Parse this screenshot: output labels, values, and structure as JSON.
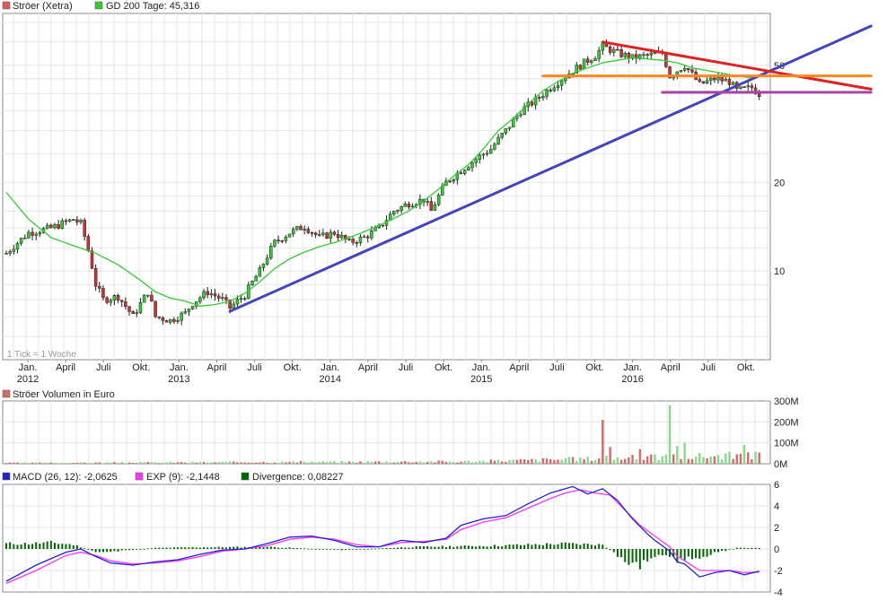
{
  "legend_main": {
    "price_label": "Ströer (Xetra)",
    "price_color": "#e05a5a",
    "ma_label": "GD 200 Tage: 45,316",
    "ma_color": "#33cc33"
  },
  "tick_note": "1 Tick = 1 Woche",
  "legend_volume": {
    "label": "Ströer Volumen in Euro",
    "color": "#d46a6a"
  },
  "legend_macd": {
    "macd_label": "MACD (26, 12): -2,0625",
    "macd_color": "#2222cc",
    "exp_label": "EXP (9): -2,1448",
    "exp_color": "#ff33ff",
    "div_label": "Divergence: 0,08227",
    "div_color": "#006600"
  },
  "x_axis": {
    "months": [
      "Jan.",
      "April",
      "Juli",
      "Okt.",
      "Jan.",
      "April",
      "Juli",
      "Okt.",
      "Jan.",
      "April",
      "Juli",
      "Okt.",
      "Jan.",
      "April",
      "Juli",
      "Okt.",
      "Jan.",
      "April",
      "Juli",
      "Okt."
    ],
    "years": [
      "2012",
      "2013",
      "2014",
      "2015",
      "2016"
    ]
  },
  "chart_data": [
    {
      "type": "line",
      "panel": "price",
      "scale": "log",
      "ylim": [
        5,
        75
      ],
      "yticks": [
        "10",
        "20",
        "50"
      ],
      "x_range": [
        "2011-12",
        "2016-11"
      ],
      "series": [
        {
          "name": "Ströer (Xetra)",
          "style": "candlestick",
          "approx_close": [
            [
              0,
              11.5
            ],
            [
              3,
              13.5
            ],
            [
              6,
              14
            ],
            [
              9,
              15
            ],
            [
              10,
              14.5
            ],
            [
              12,
              9
            ],
            [
              13,
              8
            ],
            [
              15,
              8.2
            ],
            [
              17,
              7
            ],
            [
              19,
              8.5
            ],
            [
              20,
              7
            ],
            [
              22,
              6.8
            ],
            [
              24,
              7.2
            ],
            [
              25,
              7.8
            ],
            [
              27,
              8.5
            ],
            [
              29,
              8
            ],
            [
              30,
              7.5
            ],
            [
              32,
              8.3
            ],
            [
              34,
              10
            ],
            [
              36,
              12.5
            ],
            [
              38,
              13.5
            ],
            [
              40,
              14.2
            ],
            [
              42,
              13
            ],
            [
              44,
              13.5
            ],
            [
              46,
              12.5
            ],
            [
              48,
              13
            ],
            [
              50,
              14
            ],
            [
              52,
              16
            ],
            [
              54,
              17
            ],
            [
              56,
              17.5
            ],
            [
              57,
              16
            ],
            [
              59,
              20
            ],
            [
              61,
              22
            ],
            [
              63,
              24
            ],
            [
              65,
              26
            ],
            [
              67,
              30
            ],
            [
              69,
              35
            ],
            [
              71,
              38
            ],
            [
              73,
              42
            ],
            [
              75,
              46
            ],
            [
              77,
              50
            ],
            [
              79,
              54
            ],
            [
              80,
              58
            ],
            [
              82,
              55
            ],
            [
              84,
              53
            ],
            [
              86,
              54
            ],
            [
              88,
              55
            ],
            [
              89,
              46
            ],
            [
              91,
              50
            ],
            [
              93,
              43
            ],
            [
              95,
              45
            ],
            [
              97,
              44
            ],
            [
              98,
              41
            ],
            [
              100,
              42
            ],
            [
              101,
              40
            ]
          ]
        },
        {
          "name": "GD 200 Tage: 45,316",
          "style": "line",
          "approx": [
            [
              0,
              18.5
            ],
            [
              3,
              15
            ],
            [
              6,
              13
            ],
            [
              9,
              12.2
            ],
            [
              12,
              11.5
            ],
            [
              15,
              10.5
            ],
            [
              18,
              9.3
            ],
            [
              20,
              8.5
            ],
            [
              22,
              8.1
            ],
            [
              24,
              7.9
            ],
            [
              26,
              7.6
            ],
            [
              28,
              7.7
            ],
            [
              30,
              7.9
            ],
            [
              32,
              8.4
            ],
            [
              34,
              9.2
            ],
            [
              36,
              10.2
            ],
            [
              38,
              11
            ],
            [
              40,
              11.6
            ],
            [
              42,
              12.1
            ],
            [
              44,
              12.5
            ],
            [
              46,
              13
            ],
            [
              48,
              13.6
            ],
            [
              50,
              14.3
            ],
            [
              52,
              15.1
            ],
            [
              54,
              16
            ],
            [
              56,
              17.3
            ],
            [
              58,
              19
            ],
            [
              60,
              21
            ],
            [
              62,
              23
            ],
            [
              64,
              26
            ],
            [
              66,
              30
            ],
            [
              68,
              33
            ],
            [
              70,
              37
            ],
            [
              72,
              41
            ],
            [
              74,
              44
            ],
            [
              76,
              47
            ],
            [
              78,
              49
            ],
            [
              80,
              51
            ],
            [
              82,
              52
            ],
            [
              84,
              53
            ],
            [
              86,
              52.5
            ],
            [
              88,
              52
            ],
            [
              90,
              51
            ],
            [
              92,
              49
            ],
            [
              94,
              48
            ],
            [
              96,
              47
            ],
            [
              98,
              46
            ],
            [
              100,
              45.3
            ]
          ]
        }
      ],
      "annotations": [
        {
          "kind": "trendline",
          "color": "#4444bb",
          "from": [
            30,
            7.3
          ],
          "to": [
            116,
            68
          ]
        },
        {
          "kind": "trendline",
          "color": "#dd2222",
          "from": [
            80,
            60
          ],
          "to": [
            116,
            41.5
          ]
        },
        {
          "kind": "horizontal",
          "color": "#ff8822",
          "from": [
            72,
            46
          ],
          "to": [
            116,
            46
          ]
        },
        {
          "kind": "horizontal",
          "color": "#aa44aa",
          "from": [
            88,
            40.5
          ],
          "to": [
            116,
            40.5
          ]
        }
      ]
    },
    {
      "type": "bar",
      "panel": "volume",
      "ylim": [
        0,
        300
      ],
      "yticks": [
        "0M",
        "100M",
        "200M",
        "300M"
      ],
      "peaks": [
        [
          80,
          210
        ],
        [
          89,
          280
        ],
        [
          90,
          85
        ],
        [
          91,
          100
        ],
        [
          81,
          80
        ],
        [
          85,
          70
        ],
        [
          99,
          90
        ]
      ]
    },
    {
      "type": "line",
      "panel": "macd",
      "ylim": [
        -4,
        6
      ],
      "yticks": [
        "-4",
        "-2",
        "0",
        "2",
        "4",
        "6"
      ],
      "series": [
        {
          "name": "MACD (26, 12): -2,0625",
          "approx": [
            [
              0,
              -3
            ],
            [
              4,
              -1.5
            ],
            [
              8,
              -0.3
            ],
            [
              10,
              0
            ],
            [
              12,
              -0.7
            ],
            [
              14,
              -1.3
            ],
            [
              17,
              -1.5
            ],
            [
              20,
              -1.2
            ],
            [
              23,
              -1
            ],
            [
              26,
              -0.5
            ],
            [
              29,
              -0.1
            ],
            [
              32,
              0
            ],
            [
              35,
              0.5
            ],
            [
              38,
              1.1
            ],
            [
              41,
              1.2
            ],
            [
              44,
              0.8
            ],
            [
              47,
              0.2
            ],
            [
              50,
              0.2
            ],
            [
              53,
              0.8
            ],
            [
              56,
              0.6
            ],
            [
              59,
              1
            ],
            [
              61,
              2.2
            ],
            [
              64,
              2.8
            ],
            [
              67,
              3.1
            ],
            [
              70,
              4.2
            ],
            [
              73,
              5.2
            ],
            [
              75,
              5.6
            ],
            [
              76,
              5.8
            ],
            [
              78,
              5.1
            ],
            [
              80,
              5.6
            ],
            [
              82,
              4.5
            ],
            [
              84,
              2.8
            ],
            [
              86,
              1.4
            ],
            [
              87,
              0.8
            ],
            [
              89,
              -0.2
            ],
            [
              90,
              -1.2
            ],
            [
              91,
              -1.4
            ],
            [
              93,
              -2.6
            ],
            [
              95,
              -2.2
            ],
            [
              97,
              -2
            ],
            [
              99,
              -2.4
            ],
            [
              101,
              -2.06
            ]
          ]
        },
        {
          "name": "EXP (9): -2,1448",
          "approx": [
            [
              0,
              -3.2
            ],
            [
              4,
              -2
            ],
            [
              8,
              -0.6
            ],
            [
              10,
              -0.3
            ],
            [
              12,
              -0.6
            ],
            [
              14,
              -1.1
            ],
            [
              17,
              -1.4
            ],
            [
              20,
              -1.3
            ],
            [
              23,
              -1.1
            ],
            [
              26,
              -0.7
            ],
            [
              29,
              -0.2
            ],
            [
              32,
              0
            ],
            [
              35,
              0.3
            ],
            [
              38,
              0.9
            ],
            [
              41,
              1.1
            ],
            [
              44,
              0.9
            ],
            [
              47,
              0.4
            ],
            [
              50,
              0.2
            ],
            [
              53,
              0.6
            ],
            [
              56,
              0.7
            ],
            [
              59,
              0.9
            ],
            [
              61,
              1.8
            ],
            [
              64,
              2.5
            ],
            [
              67,
              2.9
            ],
            [
              70,
              3.8
            ],
            [
              73,
              4.7
            ],
            [
              75,
              5.2
            ],
            [
              77,
              5.5
            ],
            [
              79,
              5.2
            ],
            [
              81,
              5
            ],
            [
              83,
              3.6
            ],
            [
              85,
              2.2
            ],
            [
              87,
              1.2
            ],
            [
              89,
              0.2
            ],
            [
              90,
              -0.7
            ],
            [
              91,
              -1.1
            ],
            [
              93,
              -2
            ],
            [
              95,
              -2
            ],
            [
              97,
              -2
            ],
            [
              99,
              -2.2
            ],
            [
              101,
              -2.14
            ]
          ]
        },
        {
          "name": "Divergence: 0,08227",
          "style": "histogram",
          "approx": [
            [
              3,
              0.5
            ],
            [
              6,
              0.6
            ],
            [
              9,
              0.4
            ],
            [
              12,
              -0.3
            ],
            [
              15,
              -0.2
            ],
            [
              20,
              0.1
            ],
            [
              25,
              0.15
            ],
            [
              35,
              0.2
            ],
            [
              45,
              -0.1
            ],
            [
              55,
              0.2
            ],
            [
              65,
              0.3
            ],
            [
              75,
              0.5
            ],
            [
              80,
              0.4
            ],
            [
              83,
              -1.2
            ],
            [
              85,
              -1.5
            ],
            [
              87,
              -0.6
            ],
            [
              90,
              -1
            ],
            [
              92,
              -0.9
            ],
            [
              95,
              -0.4
            ],
            [
              98,
              0.1
            ],
            [
              101,
              0.08
            ]
          ]
        }
      ]
    }
  ]
}
